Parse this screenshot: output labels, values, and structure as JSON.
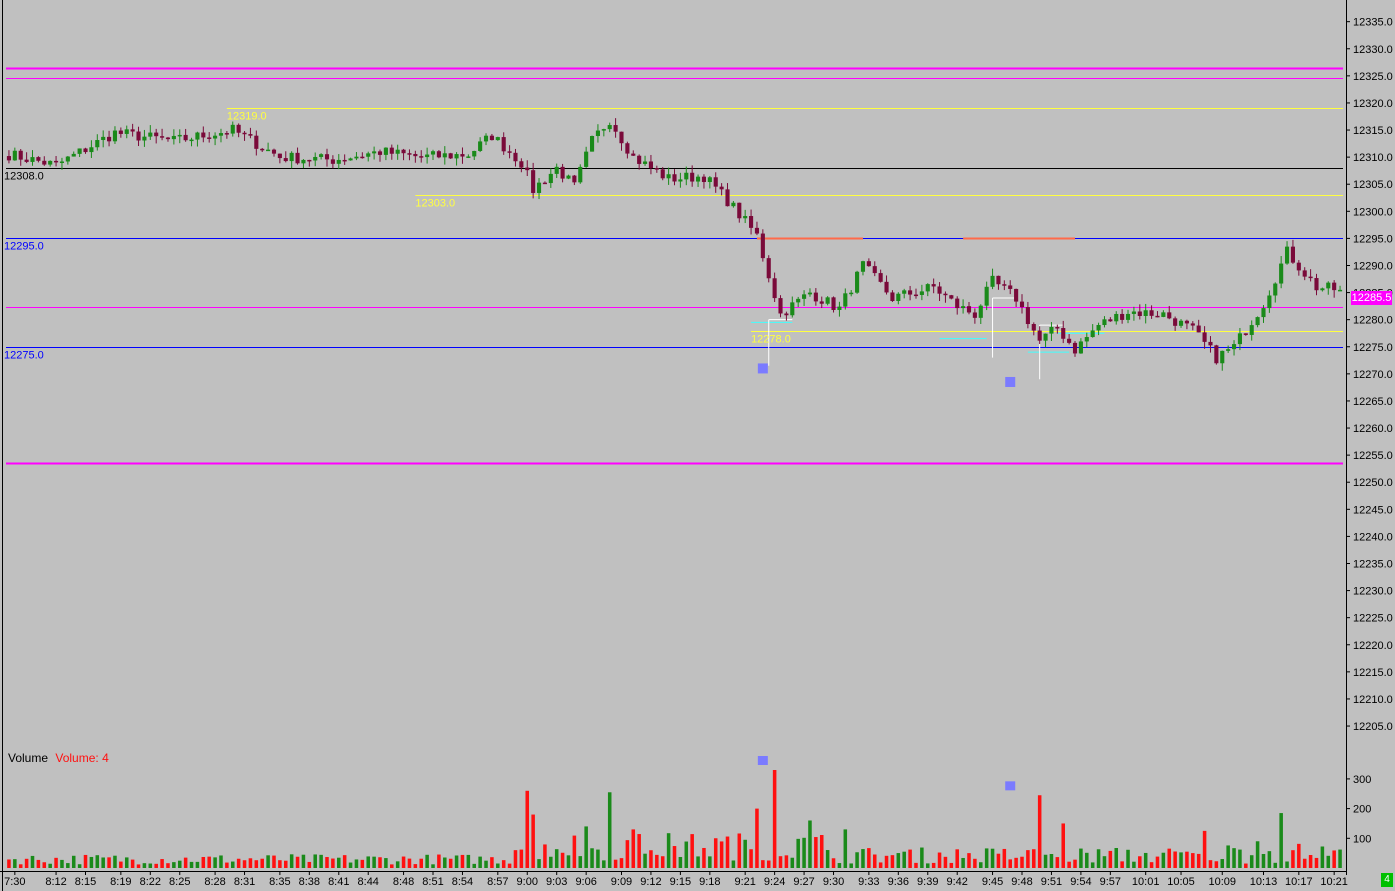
{
  "colors": {
    "background": "#c0c0c0",
    "up_candle": "#1a8a1a",
    "down_candle": "#7a0a3a",
    "vol_up": "#1a8a1a",
    "vol_down": "#ff1010",
    "magenta": "#ff00ff",
    "yellow": "#ffff40",
    "blue": "#0000ff",
    "black": "#000000",
    "cyan": "#40ffff",
    "white": "#ffffff",
    "marker": "#7b7bff",
    "salmon": "#ff6a4a",
    "last_price_bg": "#ff00ff",
    "last_price_text": "#ffffff",
    "vol_badge_bg": "#00c000"
  },
  "volume_panel": {
    "title": "Volume",
    "value_label": "Volume: 4"
  },
  "last_price_label": "12285.5",
  "volume_badge_label": "4",
  "chart_data": [
    {
      "type": "candlestick",
      "title": "",
      "ylim": [
        12201.5,
        12339
      ],
      "y_tick_labels": [
        "12335.0",
        "12330.0",
        "12325.0",
        "12320.0",
        "12315.0",
        "12310.0",
        "12305.0",
        "12300.0",
        "12295.0",
        "12290.0",
        "12285.0",
        "12280.0",
        "12275.0",
        "12270.0",
        "12265.0",
        "12260.0",
        "12255.0",
        "12250.0",
        "12245.0",
        "12240.0",
        "12235.0",
        "12230.0",
        "12225.0",
        "12220.0",
        "12215.0",
        "12210.0",
        "12205.0"
      ],
      "y_tick_values": [
        12335,
        12330,
        12325,
        12320,
        12315,
        12310,
        12305,
        12300,
        12295,
        12290,
        12285,
        12280,
        12275,
        12270,
        12265,
        12260,
        12255,
        12250,
        12245,
        12240,
        12235,
        12230,
        12225,
        12220,
        12215,
        12210,
        12205
      ],
      "x_tick_labels": [
        "7:30",
        "8:12",
        "8:15",
        "8:19",
        "8:22",
        "8:25",
        "8:28",
        "8:31",
        "8:35",
        "8:38",
        "8:41",
        "8:44",
        "8:48",
        "8:51",
        "8:54",
        "8:57",
        "9:00",
        "9:03",
        "9:06",
        "9:09",
        "9:12",
        "9:15",
        "9:18",
        "9:21",
        "9:24",
        "9:27",
        "9:30",
        "9:33",
        "9:36",
        "9:39",
        "9:42",
        "9:45",
        "9:48",
        "9:51",
        "9:54",
        "9:57",
        "10:01",
        "10:05",
        "10:09",
        "10:13",
        "10:17",
        "10:21"
      ],
      "bar_count": 227,
      "x_tick_bar_index": [
        1,
        8,
        13,
        19,
        24,
        29,
        35,
        40,
        46,
        51,
        56,
        61,
        67,
        72,
        77,
        83,
        88,
        93,
        98,
        104,
        109,
        114,
        119,
        125,
        130,
        135,
        140,
        146,
        151,
        156,
        161,
        167,
        172,
        177,
        182,
        187,
        193,
        199,
        206,
        213,
        219,
        225
      ],
      "horizontal_levels": [
        {
          "price": 12326.4,
          "color": "magenta",
          "label": ""
        },
        {
          "price": 12324.6,
          "color": "magenta",
          "label": ""
        },
        {
          "price": 12319.0,
          "color": "yellow",
          "label": "12319.0",
          "start_bar": 37
        },
        {
          "price": 12308.0,
          "color": "black",
          "label": "12308.0"
        },
        {
          "price": 12303.0,
          "color": "yellow",
          "label": "12303.0",
          "start_bar": 69
        },
        {
          "price": 12295.0,
          "color": "blue",
          "label": "12295.0"
        },
        {
          "price": 12282.3,
          "color": "magenta",
          "label": ""
        },
        {
          "price": 12278.0,
          "color": "yellow",
          "label": "12278.0",
          "start_bar": 126
        },
        {
          "price": 12275.0,
          "color": "blue",
          "label": "12275.0"
        },
        {
          "price": 12253.5,
          "color": "magenta",
          "label": ""
        }
      ],
      "anchors": [
        {
          "bar": 0,
          "price": 12310.5
        },
        {
          "bar": 8,
          "price": 12308.5
        },
        {
          "bar": 18,
          "price": 12314.5
        },
        {
          "bar": 28,
          "price": 12313.0
        },
        {
          "bar": 38,
          "price": 12315.0
        },
        {
          "bar": 46,
          "price": 12310.0
        },
        {
          "bar": 55,
          "price": 12309.5
        },
        {
          "bar": 63,
          "price": 12311.0
        },
        {
          "bar": 70,
          "price": 12310.0
        },
        {
          "bar": 78,
          "price": 12310.5
        },
        {
          "bar": 82,
          "price": 12314.0
        },
        {
          "bar": 87,
          "price": 12309.0
        },
        {
          "bar": 89,
          "price": 12304.0
        },
        {
          "bar": 93,
          "price": 12308.0
        },
        {
          "bar": 96,
          "price": 12304.5
        },
        {
          "bar": 99,
          "price": 12313.0
        },
        {
          "bar": 102,
          "price": 12317.0
        },
        {
          "bar": 106,
          "price": 12310.0
        },
        {
          "bar": 112,
          "price": 12306.0
        },
        {
          "bar": 118,
          "price": 12306.5
        },
        {
          "bar": 122,
          "price": 12302.0
        },
        {
          "bar": 127,
          "price": 12295.5
        },
        {
          "bar": 131,
          "price": 12281.0
        },
        {
          "bar": 136,
          "price": 12285.0
        },
        {
          "bar": 141,
          "price": 12282.0
        },
        {
          "bar": 145,
          "price": 12290.0
        },
        {
          "bar": 150,
          "price": 12284.0
        },
        {
          "bar": 157,
          "price": 12286.0
        },
        {
          "bar": 161,
          "price": 12282.5
        },
        {
          "bar": 164,
          "price": 12281.0
        },
        {
          "bar": 167,
          "price": 12287.0
        },
        {
          "bar": 171,
          "price": 12284.0
        },
        {
          "bar": 175,
          "price": 12276.0
        },
        {
          "bar": 178,
          "price": 12278.5
        },
        {
          "bar": 181,
          "price": 12274.5
        },
        {
          "bar": 185,
          "price": 12279.0
        },
        {
          "bar": 190,
          "price": 12281.5
        },
        {
          "bar": 196,
          "price": 12281.0
        },
        {
          "bar": 201,
          "price": 12278.0
        },
        {
          "bar": 205,
          "price": 12273.0
        },
        {
          "bar": 208,
          "price": 12275.0
        },
        {
          "bar": 213,
          "price": 12283.0
        },
        {
          "bar": 217,
          "price": 12292.5
        },
        {
          "bar": 222,
          "price": 12286.0
        },
        {
          "bar": 226,
          "price": 12285.5
        }
      ],
      "volume_ylim": [
        0,
        330
      ],
      "volume_tick_labels": [
        "300",
        "200",
        "100"
      ],
      "volume_tick_values": [
        300,
        200,
        100
      ],
      "volume_spikes": [
        {
          "bar": 88,
          "value": 260
        },
        {
          "bar": 89,
          "value": 180
        },
        {
          "bar": 102,
          "value": 255
        },
        {
          "bar": 98,
          "value": 140
        },
        {
          "bar": 106,
          "value": 130
        },
        {
          "bar": 127,
          "value": 200
        },
        {
          "bar": 130,
          "value": 330
        },
        {
          "bar": 136,
          "value": 160
        },
        {
          "bar": 142,
          "value": 130
        },
        {
          "bar": 175,
          "value": 245
        },
        {
          "bar": 179,
          "value": 150
        },
        {
          "bar": 203,
          "value": 125
        },
        {
          "bar": 216,
          "value": 185
        },
        {
          "bar": 212,
          "value": 90
        }
      ]
    }
  ]
}
